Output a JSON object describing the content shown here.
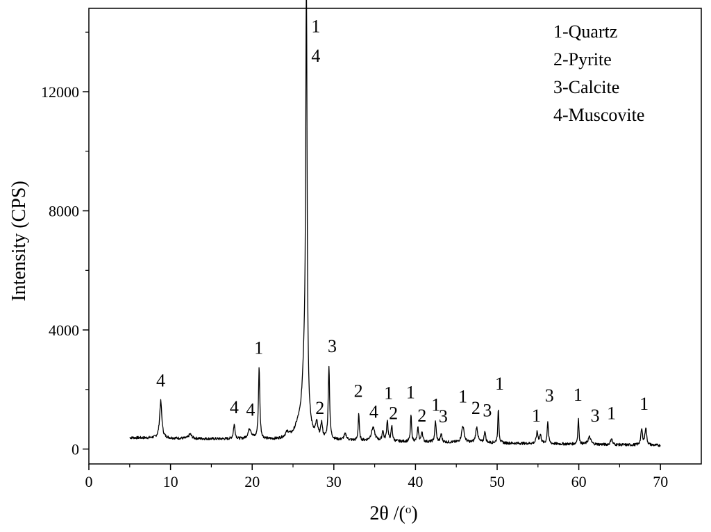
{
  "chart_data": {
    "type": "line",
    "xlabel": "2θ /(",
    "xlabel_sup": "o",
    "xlabel_suffix": ")",
    "ylabel": "Intensity (CPS)",
    "xlim": [
      0,
      75
    ],
    "ylim": [
      -500,
      14800
    ],
    "x_ticks": [
      0,
      10,
      20,
      30,
      40,
      50,
      60,
      70
    ],
    "y_ticks": [
      0,
      4000,
      8000,
      12000
    ],
    "x_tick_labels": [
      "0",
      "10",
      "20",
      "30",
      "40",
      "50",
      "60",
      "70"
    ],
    "y_tick_labels": [
      "0",
      "4000",
      "8000",
      "12000"
    ],
    "grid": false,
    "legend_position": "top-right",
    "legend": [
      "1-Quartz",
      "2-Pyrite",
      "3-Calcite",
      "4-Muscovite"
    ],
    "background": {
      "x_start": 5,
      "x_end": 70,
      "y_start": 380,
      "y_end": 120,
      "noise": 45
    },
    "peaks": [
      {
        "x": 8.8,
        "y": 1250,
        "width": 0.16
      },
      {
        "x": 12.4,
        "y": 150,
        "width": 0.2
      },
      {
        "x": 17.8,
        "y": 480,
        "width": 0.12
      },
      {
        "x": 19.7,
        "y": 340,
        "width": 0.25
      },
      {
        "x": 20.85,
        "y": 2380,
        "width": 0.1
      },
      {
        "x": 24.3,
        "y": 180,
        "width": 0.3
      },
      {
        "x": 25.6,
        "y": 300,
        "width": 0.5
      },
      {
        "x": 26.64,
        "y": 14100,
        "width": 0.1
      },
      {
        "x": 26.4,
        "y": 2200,
        "width": 0.35
      },
      {
        "x": 27.9,
        "y": 450,
        "width": 0.15
      },
      {
        "x": 28.5,
        "y": 500,
        "width": 0.12
      },
      {
        "x": 29.4,
        "y": 2450,
        "width": 0.1
      },
      {
        "x": 31.4,
        "y": 200,
        "width": 0.2
      },
      {
        "x": 33.05,
        "y": 920,
        "width": 0.08
      },
      {
        "x": 34.8,
        "y": 450,
        "width": 0.25
      },
      {
        "x": 36.0,
        "y": 350,
        "width": 0.1
      },
      {
        "x": 36.55,
        "y": 700,
        "width": 0.1
      },
      {
        "x": 37.1,
        "y": 500,
        "width": 0.1
      },
      {
        "x": 39.45,
        "y": 900,
        "width": 0.08
      },
      {
        "x": 40.3,
        "y": 450,
        "width": 0.1
      },
      {
        "x": 40.8,
        "y": 350,
        "width": 0.1
      },
      {
        "x": 42.45,
        "y": 700,
        "width": 0.1
      },
      {
        "x": 43.15,
        "y": 280,
        "width": 0.1
      },
      {
        "x": 45.8,
        "y": 560,
        "width": 0.18
      },
      {
        "x": 47.5,
        "y": 520,
        "width": 0.15
      },
      {
        "x": 48.5,
        "y": 400,
        "width": 0.1
      },
      {
        "x": 50.15,
        "y": 1150,
        "width": 0.08
      },
      {
        "x": 54.9,
        "y": 380,
        "width": 0.12
      },
      {
        "x": 55.3,
        "y": 280,
        "width": 0.12
      },
      {
        "x": 56.2,
        "y": 750,
        "width": 0.09
      },
      {
        "x": 59.95,
        "y": 850,
        "width": 0.08
      },
      {
        "x": 61.3,
        "y": 250,
        "width": 0.2
      },
      {
        "x": 64.0,
        "y": 220,
        "width": 0.12
      },
      {
        "x": 67.7,
        "y": 520,
        "width": 0.12
      },
      {
        "x": 68.2,
        "y": 580,
        "width": 0.12
      }
    ],
    "peak_labels": [
      {
        "text": "4",
        "x": 8.8,
        "y": 2100
      },
      {
        "text": "4",
        "x": 17.8,
        "y": 1200
      },
      {
        "text": "4",
        "x": 19.8,
        "y": 1120
      },
      {
        "text": "1",
        "x": 20.8,
        "y": 3200
      },
      {
        "text": "1",
        "x": 27.8,
        "y": 14000
      },
      {
        "text": "4",
        "x": 27.8,
        "y": 13000
      },
      {
        "text": "2",
        "x": 28.3,
        "y": 1180
      },
      {
        "text": "3",
        "x": 29.8,
        "y": 3250
      },
      {
        "text": "2",
        "x": 33.0,
        "y": 1750
      },
      {
        "text": "4",
        "x": 34.9,
        "y": 1050
      },
      {
        "text": "1",
        "x": 36.7,
        "y": 1680
      },
      {
        "text": "2",
        "x": 37.3,
        "y": 1000
      },
      {
        "text": "1",
        "x": 39.4,
        "y": 1700
      },
      {
        "text": "2",
        "x": 40.8,
        "y": 920
      },
      {
        "text": "1",
        "x": 42.5,
        "y": 1280
      },
      {
        "text": "3",
        "x": 43.4,
        "y": 900
      },
      {
        "text": "1",
        "x": 45.8,
        "y": 1560
      },
      {
        "text": "2",
        "x": 47.4,
        "y": 1180
      },
      {
        "text": "3",
        "x": 48.8,
        "y": 1100
      },
      {
        "text": "1",
        "x": 50.3,
        "y": 2000
      },
      {
        "text": "1",
        "x": 54.8,
        "y": 920
      },
      {
        "text": "3",
        "x": 56.4,
        "y": 1600
      },
      {
        "text": "1",
        "x": 59.9,
        "y": 1620
      },
      {
        "text": "3",
        "x": 62.0,
        "y": 920
      },
      {
        "text": "1",
        "x": 64.0,
        "y": 1000
      },
      {
        "text": "1",
        "x": 68.0,
        "y": 1320
      }
    ]
  }
}
